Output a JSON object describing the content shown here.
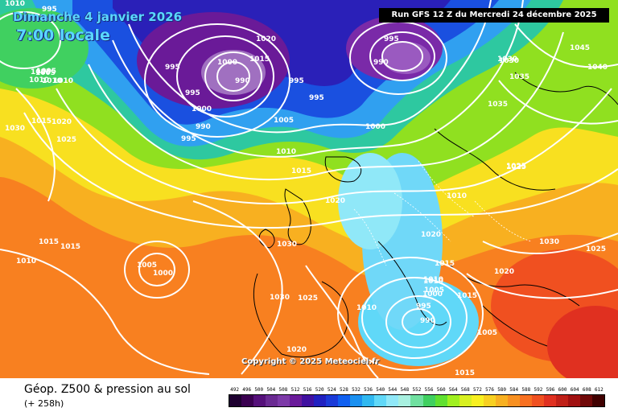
{
  "header": {
    "date": "Dimanche 4 janvier 2026",
    "time": "7:00 locale",
    "run": "Run GFS 12 Z du Mercredi 24 décembre 2025"
  },
  "copyright": "Copyright © 2025 Meteociel.fr",
  "footer": {
    "title": "Géop. Z500 & pression au sol",
    "step": "(+ 258h)"
  },
  "legend": {
    "values": [
      "492",
      "496",
      "500",
      "504",
      "508",
      "512",
      "516",
      "520",
      "524",
      "528",
      "532",
      "536",
      "540",
      "544",
      "548",
      "552",
      "556",
      "560",
      "564",
      "568",
      "572",
      "576",
      "580",
      "584",
      "588",
      "592",
      "596",
      "600",
      "604",
      "608",
      "612"
    ],
    "colors": [
      "#1e0030",
      "#3a0050",
      "#55107a",
      "#6a2a92",
      "#7d3aa8",
      "#6a1a9a",
      "#4010a0",
      "#2020c0",
      "#1a3ad8",
      "#1060f0",
      "#1a90f0",
      "#30b8f0",
      "#60d8f8",
      "#90e8f8",
      "#a8f0e0",
      "#70e0a0",
      "#40d060",
      "#60e030",
      "#a0f020",
      "#d8f020",
      "#f8f020",
      "#f8d020",
      "#f8b020",
      "#f89020",
      "#f87020",
      "#f05020",
      "#e03020",
      "#c02018",
      "#a01010",
      "#700808",
      "#400000"
    ]
  },
  "pressure_labels": [
    {
      "text": "995"
    },
    {
      "text": "1010"
    },
    {
      "text": "1020"
    },
    {
      "text": "995"
    },
    {
      "text": "1015"
    },
    {
      "text": "1010"
    },
    {
      "text": "1025"
    },
    {
      "text": "1030"
    },
    {
      "text": "995"
    },
    {
      "text": "1000"
    },
    {
      "text": "990"
    },
    {
      "text": "1000"
    },
    {
      "text": "995"
    },
    {
      "text": "990"
    },
    {
      "text": "995"
    },
    {
      "text": "1005"
    },
    {
      "text": "1010"
    },
    {
      "text": "1005"
    },
    {
      "text": "1020"
    },
    {
      "text": "1025"
    },
    {
      "text": "1000"
    },
    {
      "text": "1030"
    },
    {
      "text": "1045"
    },
    {
      "text": "1040"
    },
    {
      "text": "1035"
    },
    {
      "text": "1035"
    },
    {
      "text": "995"
    },
    {
      "text": "990"
    },
    {
      "text": "995"
    },
    {
      "text": "1005"
    },
    {
      "text": "1010"
    },
    {
      "text": "1015"
    },
    {
      "text": "1010"
    },
    {
      "text": "1020"
    },
    {
      "text": "1025"
    },
    {
      "text": "1010"
    },
    {
      "text": "1020"
    },
    {
      "text": "1015"
    },
    {
      "text": "1030"
    },
    {
      "text": "1015"
    },
    {
      "text": "1015"
    },
    {
      "text": "1010"
    },
    {
      "text": "1005"
    },
    {
      "text": "1000"
    },
    {
      "text": "1030"
    },
    {
      "text": "1025"
    },
    {
      "text": "1010"
    },
    {
      "text": "1015"
    },
    {
      "text": "1010"
    },
    {
      "text": "1000"
    },
    {
      "text": "995"
    },
    {
      "text": "990"
    },
    {
      "text": "1020"
    },
    {
      "text": "1030"
    },
    {
      "text": "1025"
    },
    {
      "text": "1020"
    },
    {
      "text": "1005"
    },
    {
      "text": "1015"
    },
    {
      "text": "1025"
    },
    {
      "text": "1005"
    },
    {
      "text": "1015"
    },
    {
      "text": "1010"
    },
    {
      "text": "1030"
    }
  ]
}
